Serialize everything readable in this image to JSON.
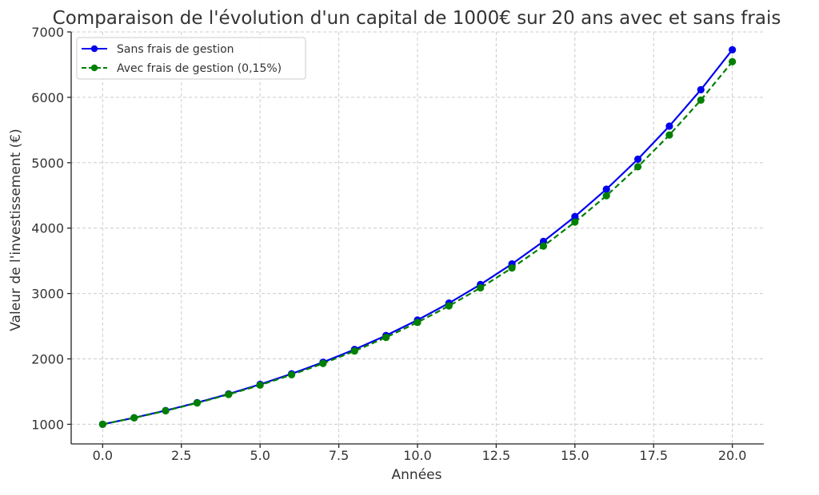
{
  "chart_data": {
    "type": "line",
    "title": "Comparaison de l'évolution d'un capital de 1000€ sur 20 ans avec et sans frais",
    "xlabel": "Années",
    "ylabel": "Valeur de l'investissement (€)",
    "xlim": [
      -1,
      21
    ],
    "ylim": [
      700,
      7000
    ],
    "x_ticks": [
      0,
      2.5,
      5,
      7.5,
      10,
      12.5,
      15,
      17.5,
      20
    ],
    "x_tick_labels": [
      "0.0",
      "2.5",
      "5.0",
      "7.5",
      "10.0",
      "12.5",
      "15.0",
      "17.5",
      "20.0"
    ],
    "y_ticks": [
      1000,
      2000,
      3000,
      4000,
      5000,
      6000,
      7000
    ],
    "y_tick_labels": [
      "1000",
      "2000",
      "3000",
      "4000",
      "5000",
      "6000",
      "7000"
    ],
    "grid": true,
    "legend_position": "top-left",
    "x": [
      0,
      1,
      2,
      3,
      4,
      5,
      6,
      7,
      8,
      9,
      10,
      11,
      12,
      13,
      14,
      15,
      16,
      17,
      18,
      19,
      20
    ],
    "series": [
      {
        "name": "Sans frais de gestion",
        "color": "#0000ee",
        "line_style": "solid",
        "marker": "circle",
        "values": [
          1000,
          1100,
          1210,
          1331,
          1464,
          1611,
          1772,
          1949,
          2144,
          2358,
          2594,
          2853,
          3138,
          3452,
          3797,
          4177,
          4595,
          5054,
          5560,
          6116,
          6727
        ]
      },
      {
        "name": "Avec frais de gestion (0,15%)",
        "color": "#008000",
        "line_style": "dashed",
        "marker": "circle",
        "values": [
          1000,
          1098,
          1206,
          1325,
          1456,
          1599,
          1757,
          1930,
          2120,
          2329,
          2558,
          2810,
          3087,
          3391,
          3725,
          4092,
          4495,
          4938,
          5424,
          5958,
          6545
        ]
      }
    ]
  }
}
